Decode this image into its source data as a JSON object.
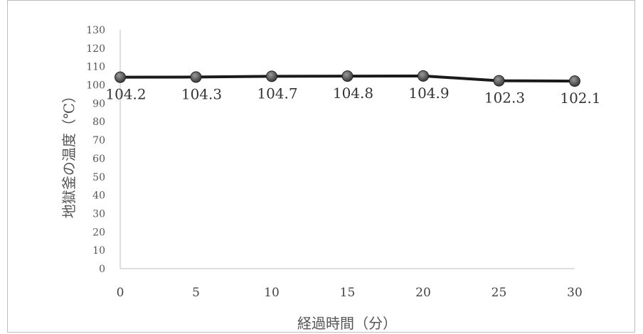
{
  "chart_data": {
    "type": "line",
    "x": [
      0,
      5,
      10,
      15,
      20,
      25,
      30
    ],
    "values": [
      104.2,
      104.3,
      104.7,
      104.8,
      104.9,
      102.3,
      102.1
    ],
    "data_labels": [
      "104.2",
      "104.3",
      "104.7",
      "104.8",
      "104.9",
      "102.3",
      "102.1"
    ],
    "y_ticks": [
      "0",
      "10",
      "20",
      "30",
      "40",
      "50",
      "60",
      "70",
      "80",
      "90",
      "100",
      "110",
      "120",
      "130"
    ],
    "x_ticks": [
      "0",
      "5",
      "10",
      "15",
      "20",
      "25",
      "30"
    ],
    "ylim": [
      0,
      130
    ],
    "xlim": [
      0,
      30
    ],
    "xlabel": "経過時間（分）",
    "ylabel": "地獄釜の温度（℃）",
    "grid": false,
    "line_color": "#1a1a1a",
    "marker_color": "#3a3a3a"
  }
}
